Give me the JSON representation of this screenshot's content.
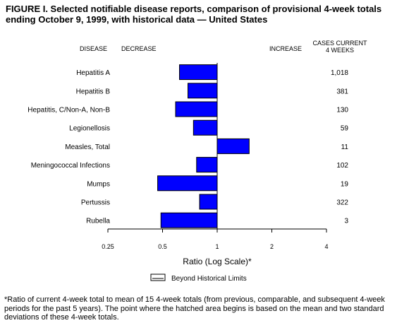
{
  "title": "FIGURE I. Selected notifiable disease reports, comparison of provisional 4-week totals ending October 9, 1999, with historical data — United States",
  "headers": {
    "disease": "DISEASE",
    "decrease": "DECREASE",
    "increase": "INCREASE",
    "cases_line1": "CASES CURRENT",
    "cases_line2": "4 WEEKS"
  },
  "legend": {
    "label": "Beyond Historical Limits"
  },
  "footnote": "*Ratio of current 4-week total to mean of 15 4-week totals (from previous, comparable, and subsequent 4-week periods for the past 5 years). The point where the hatched area begins is based on the mean and two standard deviations of these 4-week totals.",
  "chart_data": {
    "type": "bar",
    "orientation": "horizontal",
    "x_scale": "log",
    "xlabel": "Ratio (Log Scale)*",
    "xlim": [
      0.25,
      4
    ],
    "x_ticks": [
      {
        "value": 0.25,
        "label": "0.25"
      },
      {
        "value": 0.5,
        "label": "0.5"
      },
      {
        "value": 1,
        "label": "1"
      },
      {
        "value": 2,
        "label": "2"
      },
      {
        "value": 4,
        "label": "4"
      }
    ],
    "baseline": 1,
    "bar_color": "#0000ff",
    "categories": [
      "Hepatitis A",
      "Hepatitis B",
      "Hepatitis, C/Non-A, Non-B",
      "Legionellosis",
      "Measles, Total",
      "Meningococcal Infections",
      "Mumps",
      "Pertussis",
      "Rubella"
    ],
    "values": [
      0.62,
      0.69,
      0.59,
      0.74,
      1.5,
      0.77,
      0.47,
      0.8,
      0.49
    ],
    "cases": [
      "1,018",
      "381",
      "130",
      "59",
      "11",
      "102",
      "19",
      "322",
      "3"
    ]
  }
}
